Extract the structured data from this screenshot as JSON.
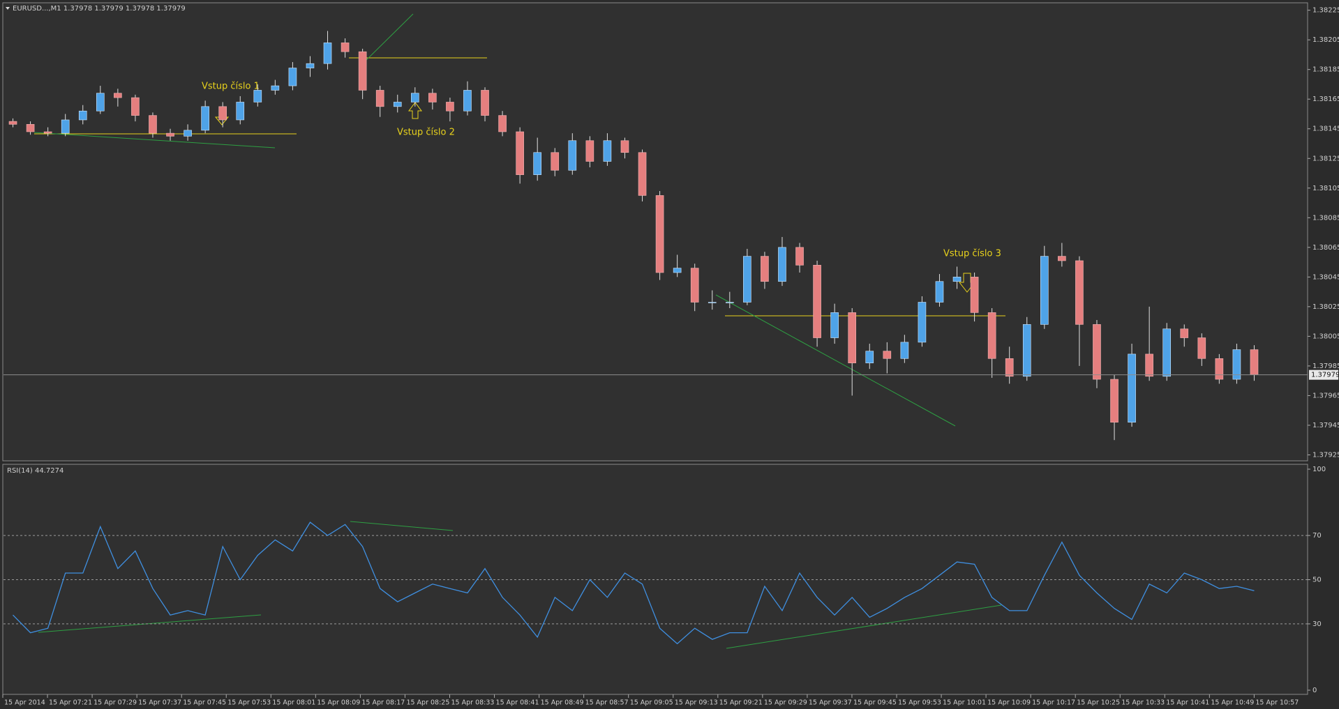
{
  "chart_data": [
    {
      "type": "candlestick",
      "title": "EURUSD...,M1  1.37978 1.37979 1.37978 1.37979",
      "up_color": "#4fa3e8",
      "down_color": "#e57f7f",
      "wick_color": "#e0e0e0",
      "ylim": [
        1.37921,
        1.3823
      ],
      "yticks": [
        1.38225,
        1.38205,
        1.38185,
        1.38165,
        1.38145,
        1.38125,
        1.38105,
        1.38085,
        1.38065,
        1.38045,
        1.38025,
        1.38005,
        1.37985,
        1.37965,
        1.37945,
        1.37925
      ],
      "current_price": 1.37979,
      "annotations": [
        "Vstup číslo 1",
        "Vstup číslo 2",
        "Vstup číslo 3"
      ],
      "candles": [
        [
          1.3815,
          1.38152,
          1.38146,
          1.38148
        ],
        [
          1.38148,
          1.3815,
          1.38141,
          1.38143
        ],
        [
          1.38143,
          1.38146,
          1.3814,
          1.38142
        ],
        [
          1.38142,
          1.38155,
          1.3814,
          1.38151
        ],
        [
          1.38151,
          1.38161,
          1.38148,
          1.38157
        ],
        [
          1.38157,
          1.38174,
          1.38155,
          1.38169
        ],
        [
          1.38169,
          1.38172,
          1.3816,
          1.38166
        ],
        [
          1.38166,
          1.38168,
          1.3815,
          1.38154
        ],
        [
          1.38154,
          1.38156,
          1.38139,
          1.38142
        ],
        [
          1.38142,
          1.38145,
          1.38137,
          1.3814
        ],
        [
          1.3814,
          1.38148,
          1.38137,
          1.38144
        ],
        [
          1.38144,
          1.38164,
          1.38142,
          1.3816
        ],
        [
          1.3816,
          1.38163,
          1.38146,
          1.38151
        ],
        [
          1.38151,
          1.38167,
          1.38148,
          1.38163
        ],
        [
          1.38163,
          1.38175,
          1.3816,
          1.38171
        ],
        [
          1.38171,
          1.38178,
          1.38168,
          1.38174
        ],
        [
          1.38174,
          1.3819,
          1.38171,
          1.38186
        ],
        [
          1.38186,
          1.38194,
          1.3818,
          1.38189
        ],
        [
          1.38189,
          1.38211,
          1.38185,
          1.38203
        ],
        [
          1.38203,
          1.38206,
          1.38193,
          1.38197
        ],
        [
          1.38197,
          1.38199,
          1.38165,
          1.38171
        ],
        [
          1.38171,
          1.38174,
          1.38153,
          1.3816
        ],
        [
          1.3816,
          1.38168,
          1.38156,
          1.38163
        ],
        [
          1.38163,
          1.38173,
          1.3816,
          1.38169
        ],
        [
          1.38169,
          1.38172,
          1.38158,
          1.38163
        ],
        [
          1.38163,
          1.38166,
          1.3815,
          1.38157
        ],
        [
          1.38157,
          1.38177,
          1.38154,
          1.38171
        ],
        [
          1.38171,
          1.38173,
          1.3815,
          1.38154
        ],
        [
          1.38154,
          1.38157,
          1.3814,
          1.38143
        ],
        [
          1.38143,
          1.38146,
          1.38108,
          1.38114
        ],
        [
          1.38114,
          1.38139,
          1.3811,
          1.38129
        ],
        [
          1.38129,
          1.38132,
          1.38113,
          1.38117
        ],
        [
          1.38117,
          1.38142,
          1.38114,
          1.38137
        ],
        [
          1.38137,
          1.3814,
          1.38119,
          1.38123
        ],
        [
          1.38123,
          1.38142,
          1.3812,
          1.38137
        ],
        [
          1.38137,
          1.38139,
          1.38125,
          1.38129
        ],
        [
          1.38129,
          1.38131,
          1.38096,
          1.381
        ],
        [
          1.381,
          1.38103,
          1.38043,
          1.38048
        ],
        [
          1.38048,
          1.3806,
          1.38045,
          1.38051
        ],
        [
          1.38051,
          1.38054,
          1.38022,
          1.38028
        ],
        [
          1.38028,
          1.38036,
          1.38023,
          1.38028
        ],
        [
          1.38028,
          1.38035,
          1.38024,
          1.38028
        ],
        [
          1.38028,
          1.38064,
          1.38026,
          1.38059
        ],
        [
          1.38059,
          1.38062,
          1.38037,
          1.38042
        ],
        [
          1.38042,
          1.38072,
          1.38039,
          1.38065
        ],
        [
          1.38065,
          1.38068,
          1.38048,
          1.38053
        ],
        [
          1.38053,
          1.38056,
          1.37998,
          1.38004
        ],
        [
          1.38004,
          1.38027,
          1.38,
          1.38021
        ],
        [
          1.38021,
          1.38024,
          1.37965,
          1.37987
        ],
        [
          1.37987,
          1.38,
          1.37983,
          1.37995
        ],
        [
          1.37995,
          1.38001,
          1.3798,
          1.3799
        ],
        [
          1.3799,
          1.38006,
          1.37987,
          1.38001
        ],
        [
          1.38001,
          1.38032,
          1.37998,
          1.38028
        ],
        [
          1.38028,
          1.38047,
          1.38025,
          1.38042
        ],
        [
          1.38042,
          1.38052,
          1.38037,
          1.38045
        ],
        [
          1.38045,
          1.38048,
          1.38015,
          1.38021
        ],
        [
          1.38021,
          1.38024,
          1.37977,
          1.3799
        ],
        [
          1.3799,
          1.37998,
          1.37973,
          1.37978
        ],
        [
          1.37978,
          1.38018,
          1.37975,
          1.38013
        ],
        [
          1.38013,
          1.38066,
          1.3801,
          1.38059
        ],
        [
          1.38059,
          1.38068,
          1.38052,
          1.38056
        ],
        [
          1.38056,
          1.38059,
          1.37985,
          1.38013
        ],
        [
          1.38013,
          1.38016,
          1.3797,
          1.37976
        ],
        [
          1.37976,
          1.37979,
          1.37935,
          1.37947
        ],
        [
          1.37947,
          1.38,
          1.37944,
          1.37993
        ],
        [
          1.37993,
          1.38025,
          1.37975,
          1.37978
        ],
        [
          1.37978,
          1.38014,
          1.37975,
          1.3801
        ],
        [
          1.3801,
          1.38013,
          1.37998,
          1.38004
        ],
        [
          1.38004,
          1.38007,
          1.37985,
          1.3799
        ],
        [
          1.3799,
          1.37993,
          1.37973,
          1.37976
        ],
        [
          1.37976,
          1.38,
          1.37973,
          1.37996
        ],
        [
          1.37996,
          1.37999,
          1.37975,
          1.37979
        ]
      ]
    },
    {
      "type": "line",
      "title": "RSI(14) 44.7274",
      "color": "#3f8fe0",
      "ylim": [
        0,
        100
      ],
      "yticks": [
        100,
        70,
        50,
        30,
        0
      ],
      "values": [
        34,
        26,
        28,
        53,
        53,
        74,
        55,
        63,
        46,
        34,
        36,
        34,
        65,
        50,
        61,
        68,
        63,
        76,
        70,
        75,
        65,
        46,
        40,
        44,
        48,
        46,
        44,
        55,
        42,
        34,
        24,
        42,
        36,
        50,
        42,
        53,
        48,
        28,
        21,
        28,
        23,
        26,
        26,
        47,
        36,
        53,
        42,
        34,
        42,
        33,
        37,
        42,
        46,
        52,
        58,
        57,
        42,
        36,
        36,
        52,
        67,
        52,
        44,
        37,
        32,
        48,
        44,
        53,
        50,
        46,
        47,
        45
      ],
      "xtick_labels": [
        "15 Apr 2014",
        "15 Apr 07:21",
        "15 Apr 07:29",
        "15 Apr 07:37",
        "15 Apr 07:45",
        "15 Apr 07:53",
        "15 Apr 08:01",
        "15 Apr 08:09",
        "15 Apr 08:17",
        "15 Apr 08:25",
        "15 Apr 08:33",
        "15 Apr 08:41",
        "15 Apr 08:49",
        "15 Apr 08:57",
        "15 Apr 09:05",
        "15 Apr 09:13",
        "15 Apr 09:21",
        "15 Apr 09:29",
        "15 Apr 09:37",
        "15 Apr 09:45",
        "15 Apr 09:53",
        "15 Apr 10:01",
        "15 Apr 10:09",
        "15 Apr 10:17",
        "15 Apr 10:25",
        "15 Apr 10:33",
        "15 Apr 10:41",
        "15 Apr 10:49",
        "15 Apr 10:57"
      ]
    }
  ]
}
